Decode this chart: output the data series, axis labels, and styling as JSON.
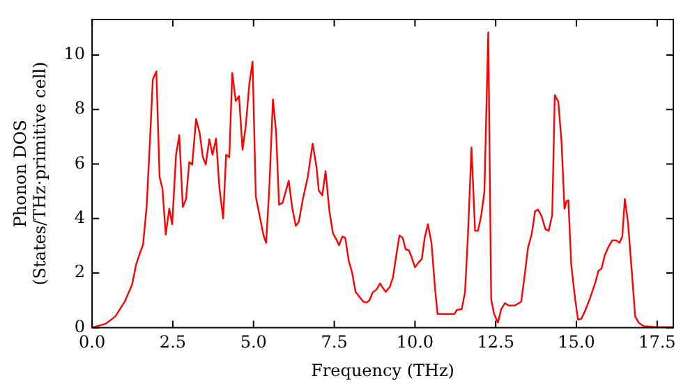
{
  "chart_data": {
    "type": "line",
    "xlabel": "Frequency (THz)",
    "ylabel": "Phonon DOS\n(States/THz·primitive cell)",
    "xlim": [
      0,
      18
    ],
    "xticks": [
      {
        "value": 0,
        "label": "0.0"
      },
      {
        "value": 2.5,
        "label": "2.5"
      },
      {
        "value": 5,
        "label": "5.0"
      },
      {
        "value": 7.5,
        "label": "7.5"
      },
      {
        "value": 10,
        "label": "10.0"
      },
      {
        "value": 12.5,
        "label": "12.5"
      },
      {
        "value": 15,
        "label": "15.0"
      },
      {
        "value": 17.5,
        "label": "17.5"
      }
    ],
    "ylim": [
      0,
      11.3
    ],
    "yticks": [
      0,
      2,
      4,
      6,
      8,
      10
    ],
    "grid": false,
    "legend": false,
    "marker": "none",
    "line_style": "solid",
    "series": [
      {
        "color": "#ff0000",
        "x": [
          0,
          0.42,
          0.72,
          1.01,
          1.24,
          1.36,
          1.46,
          1.58,
          1.69,
          1.79,
          1.88,
          1.99,
          2.09,
          2.18,
          2.28,
          2.39,
          2.48,
          2.6,
          2.7,
          2.81,
          2.91,
          3.01,
          3.1,
          3.22,
          3.33,
          3.43,
          3.52,
          3.63,
          3.73,
          3.84,
          3.94,
          4.06,
          4.15,
          4.25,
          4.34,
          4.45,
          4.55,
          4.66,
          4.76,
          4.87,
          4.97,
          5.07,
          5.19,
          5.31,
          5.39,
          5.49,
          5.6,
          5.7,
          5.79,
          5.9,
          6.09,
          6.19,
          6.31,
          6.4,
          6.53,
          6.68,
          6.83,
          6.95,
          7.02,
          7.13,
          7.23,
          7.35,
          7.46,
          7.58,
          7.65,
          7.75,
          7.84,
          7.95,
          8.05,
          8.16,
          8.28,
          8.4,
          8.5,
          8.59,
          8.69,
          8.81,
          8.92,
          8.99,
          9.09,
          9.22,
          9.32,
          9.41,
          9.52,
          9.62,
          9.71,
          9.81,
          9.9,
          10.0,
          10.11,
          10.21,
          10.3,
          10.4,
          10.51,
          10.63,
          10.7,
          11.22,
          11.3,
          11.45,
          11.55,
          11.64,
          11.75,
          11.86,
          11.95,
          12.05,
          12.15,
          12.27,
          12.36,
          12.45,
          12.57,
          12.67,
          12.79,
          12.9,
          13.09,
          13.29,
          13.39,
          13.5,
          13.62,
          13.72,
          13.81,
          13.92,
          14.04,
          14.14,
          14.25,
          14.33,
          14.44,
          14.54,
          14.63,
          14.69,
          14.75,
          14.84,
          14.96,
          15.05,
          15.15,
          15.26,
          15.41,
          15.59,
          15.68,
          15.78,
          15.88,
          16.0,
          16.11,
          16.23,
          16.33,
          16.42,
          16.5,
          16.6,
          16.71,
          16.82,
          16.93,
          17.08,
          17.27,
          17.46,
          18.0
        ],
        "values": [
          0,
          0.14,
          0.41,
          0.95,
          1.58,
          2.3,
          2.66,
          3.05,
          4.45,
          6.8,
          9.1,
          9.4,
          5.53,
          5.08,
          3.41,
          4.36,
          3.79,
          6.34,
          7.06,
          4.42,
          4.72,
          6.07,
          5.98,
          7.65,
          7.15,
          6.25,
          5.98,
          6.91,
          6.34,
          6.93,
          5.17,
          4.0,
          6.34,
          6.25,
          9.34,
          8.31,
          8.49,
          6.52,
          7.41,
          8.94,
          9.75,
          4.81,
          4.09,
          3.38,
          3.11,
          5.17,
          8.37,
          7.15,
          4.51,
          4.58,
          5.39,
          4.45,
          3.73,
          3.88,
          4.72,
          5.53,
          6.75,
          5.89,
          5.03,
          4.85,
          5.74,
          4.27,
          3.46,
          3.2,
          3.02,
          3.34,
          3.29,
          2.44,
          2.03,
          1.31,
          1.13,
          0.95,
          0.92,
          1.0,
          1.29,
          1.4,
          1.62,
          1.49,
          1.31,
          1.49,
          1.85,
          2.57,
          3.38,
          3.29,
          2.87,
          2.84,
          2.57,
          2.21,
          2.39,
          2.51,
          3.29,
          3.79,
          3.11,
          1.31,
          0.5,
          0.5,
          0.65,
          0.68,
          1.31,
          3.38,
          6.61,
          3.55,
          3.55,
          4.09,
          4.99,
          10.83,
          1.04,
          0.5,
          0.18,
          0.68,
          0.9,
          0.81,
          0.81,
          0.95,
          1.85,
          2.93,
          3.46,
          4.27,
          4.33,
          4.09,
          3.61,
          3.55,
          4.13,
          8.53,
          8.28,
          6.79,
          4.36,
          4.63,
          4.67,
          2.3,
          1.04,
          0.29,
          0.32,
          0.59,
          1.04,
          1.67,
          2.08,
          2.17,
          2.66,
          2.98,
          3.2,
          3.2,
          3.11,
          3.34,
          4.72,
          3.82,
          2.12,
          0.41,
          0.18,
          0.05,
          0.04,
          0.02,
          0.02
        ]
      }
    ]
  }
}
